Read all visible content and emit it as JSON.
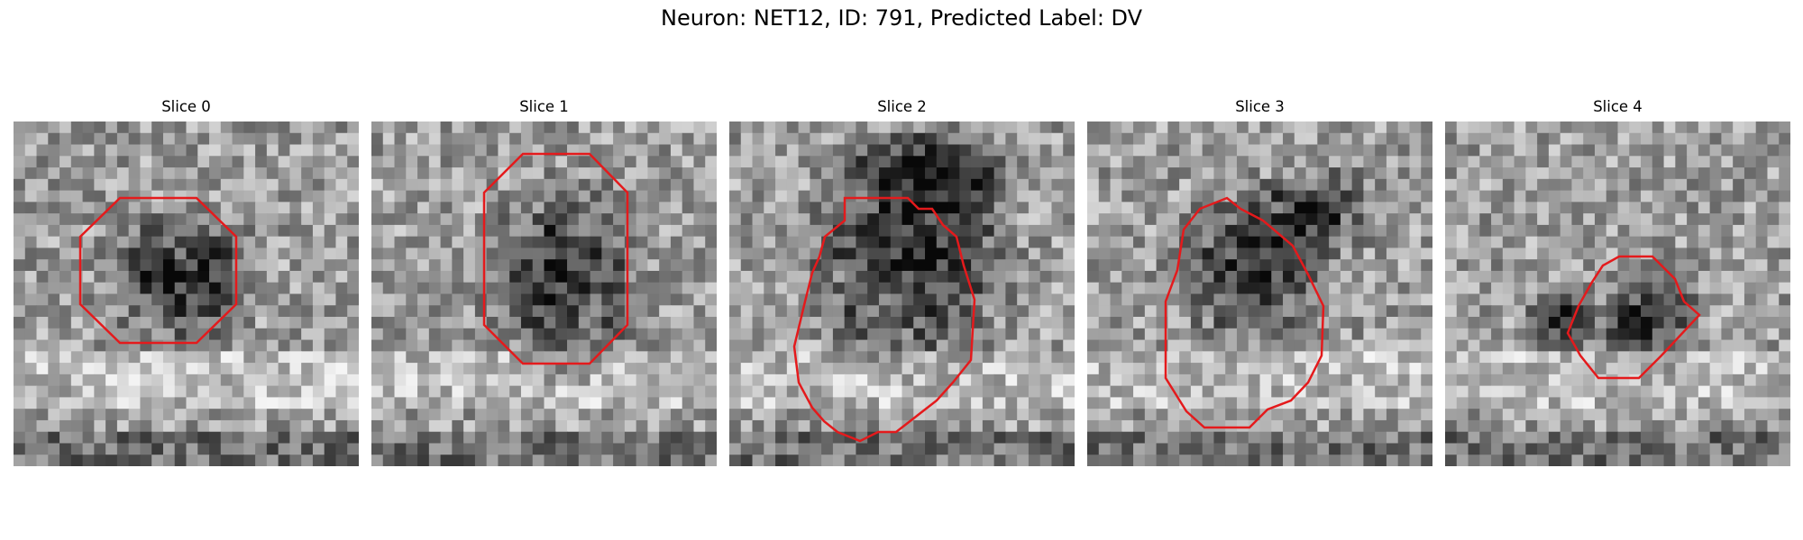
{
  "figure": {
    "title": "Neuron: NET12, ID: 791, Predicted Label: DV"
  },
  "panels": [
    {
      "title": "Slice 0",
      "overlay_color": "#e41a1c"
    },
    {
      "title": "Slice 1",
      "overlay_color": "#e41a1c"
    },
    {
      "title": "Slice 2",
      "overlay_color": "#e41a1c"
    },
    {
      "title": "Slice 3",
      "overlay_color": "#e41a1c"
    },
    {
      "title": "Slice 4",
      "overlay_color": "#e41a1c"
    }
  ]
}
